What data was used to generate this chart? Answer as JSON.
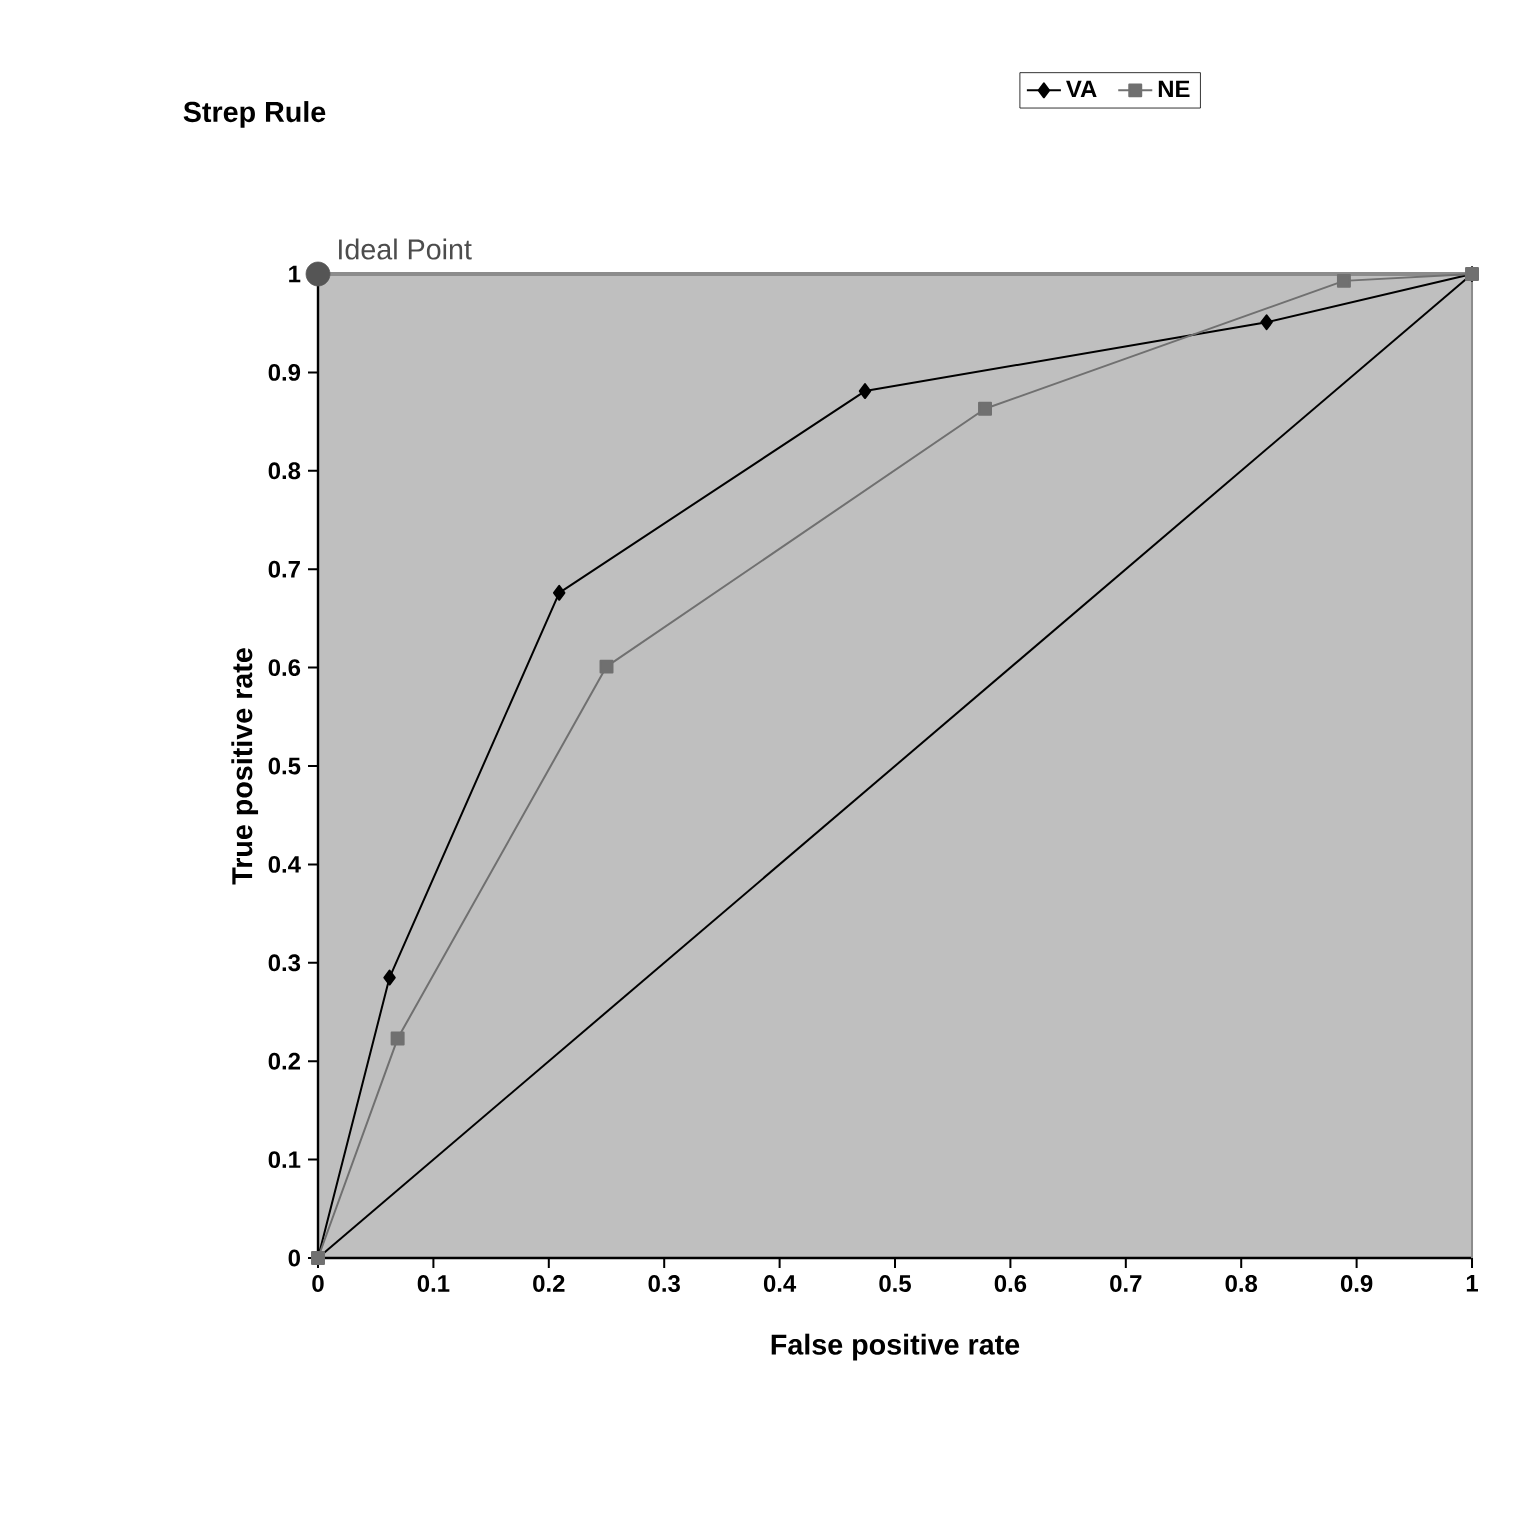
{
  "chart_data": {
    "type": "line",
    "title": "Strep Rule",
    "xlabel": "False positive rate",
    "ylabel": "True positive rate",
    "xlim": [
      0,
      1
    ],
    "ylim": [
      0,
      1
    ],
    "xticks": [
      0,
      0.1,
      0.2,
      0.3,
      0.4,
      0.5,
      0.6,
      0.7,
      0.8,
      0.9,
      1
    ],
    "yticks": [
      0,
      0.1,
      0.2,
      0.3,
      0.4,
      0.5,
      0.6,
      0.7,
      0.8,
      0.9,
      1
    ],
    "legend": "top right",
    "series": [
      {
        "name": "VA",
        "color": "#000000",
        "marker": "diamond",
        "x": [
          0,
          0.062,
          0.209,
          0.474,
          0.822,
          1
        ],
        "values": [
          0,
          0.285,
          0.676,
          0.881,
          0.951,
          1
        ]
      },
      {
        "name": "NE",
        "color": "#707070",
        "marker": "square",
        "x": [
          0,
          0.069,
          0.25,
          0.578,
          0.889,
          1
        ],
        "values": [
          0,
          0.223,
          0.601,
          0.863,
          0.993,
          1
        ]
      },
      {
        "color": "#000000",
        "marker": "none",
        "x": [
          0,
          1
        ],
        "values": [
          0,
          1
        ]
      },
      {
        "type": "scatter",
        "color": "#555555",
        "marker": "circle",
        "x": [
          0
        ],
        "values": [
          1
        ]
      }
    ],
    "annotations": [
      {
        "text": "Ideal Point",
        "x": 0,
        "y": 1
      }
    ]
  }
}
